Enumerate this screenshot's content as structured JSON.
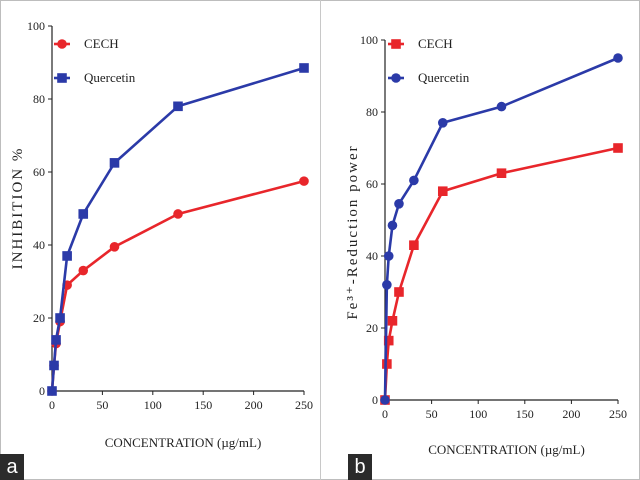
{
  "chart_data": [
    {
      "type": "line",
      "panel_label": "a",
      "xlabel": "CONCENTRATION (µg/mL)",
      "ylabel": "INHIBITION %",
      "xlim": [
        0,
        250
      ],
      "ylim": [
        0,
        100
      ],
      "xticks": [
        0,
        50,
        100,
        150,
        200,
        250
      ],
      "yticks": [
        0,
        20,
        40,
        60,
        80,
        100
      ],
      "legend_position": "top-left",
      "grid": false,
      "series": [
        {
          "name": "CECH",
          "color": "#e8262b",
          "marker": "circle",
          "x": [
            0,
            2,
            4,
            8,
            15,
            31,
            62,
            125,
            250
          ],
          "y": [
            0,
            7,
            13,
            19,
            29,
            33,
            39.5,
            48.5,
            57.5
          ]
        },
        {
          "name": "Quercetin",
          "color": "#2b3aa8",
          "marker": "square",
          "x": [
            0,
            2,
            4,
            8,
            15,
            31,
            62,
            125,
            250
          ],
          "y": [
            0,
            7,
            14,
            20,
            37,
            48.5,
            62.5,
            78,
            88.5
          ]
        }
      ]
    },
    {
      "type": "line",
      "panel_label": "b",
      "xlabel": "CONCENTRATION (µg/mL)",
      "ylabel": "Fe³⁺-Reduction power",
      "xlim": [
        0,
        250
      ],
      "ylim": [
        0,
        100
      ],
      "xticks": [
        0,
        50,
        100,
        150,
        200,
        250
      ],
      "yticks": [
        0,
        20,
        40,
        60,
        80,
        100
      ],
      "legend_position": "top-left",
      "grid": false,
      "series": [
        {
          "name": "CECH",
          "color": "#e8262b",
          "marker": "square",
          "x": [
            0,
            2,
            4,
            8,
            15,
            31,
            62,
            125,
            250
          ],
          "y": [
            0,
            10,
            16.5,
            22,
            30,
            43,
            58,
            63,
            70
          ]
        },
        {
          "name": "Quercetin",
          "color": "#2b3aa8",
          "marker": "circle",
          "x": [
            0,
            2,
            4,
            8,
            15,
            31,
            62,
            125,
            250
          ],
          "y": [
            0,
            32,
            40,
            48.5,
            54.5,
            61,
            77,
            81.5,
            95
          ]
        }
      ]
    }
  ]
}
